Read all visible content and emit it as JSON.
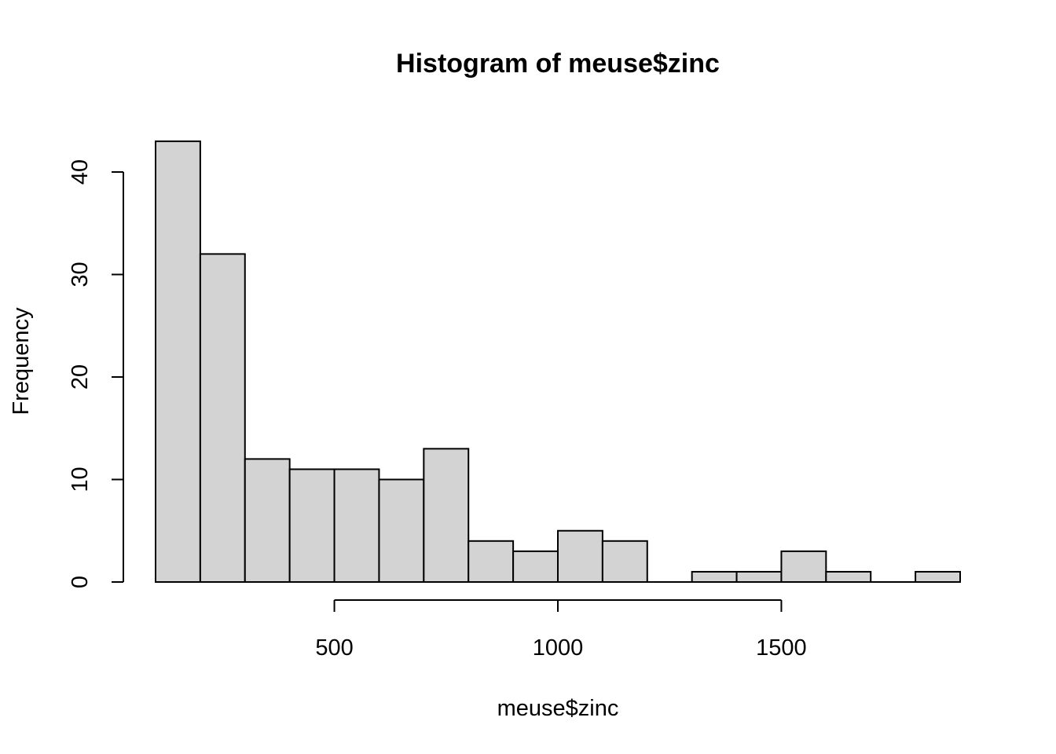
{
  "chart_data": {
    "type": "bar",
    "title": "Histogram of meuse$zinc",
    "xlabel": "meuse$zinc",
    "ylabel": "Frequency",
    "bin_edges": [
      100,
      200,
      300,
      400,
      500,
      600,
      700,
      800,
      900,
      1000,
      1100,
      1200,
      1300,
      1400,
      1500,
      1600,
      1700,
      1800,
      1900
    ],
    "values": [
      43,
      32,
      12,
      11,
      11,
      10,
      13,
      4,
      3,
      5,
      4,
      0,
      1,
      1,
      3,
      1,
      0,
      1
    ],
    "xlim": [
      100,
      1900
    ],
    "ylim": [
      0,
      43
    ],
    "x_ticks": [
      500,
      1000,
      1500
    ],
    "x_tick_labels": [
      "500",
      "1000",
      "1500"
    ],
    "y_ticks": [
      0,
      10,
      20,
      30,
      40
    ],
    "y_tick_labels": [
      "0",
      "10",
      "20",
      "30",
      "40"
    ],
    "grid": false,
    "bar_color": "#d3d3d3"
  }
}
